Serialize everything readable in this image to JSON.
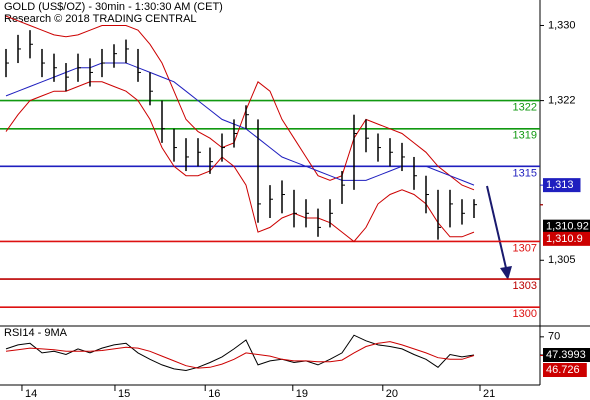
{
  "chart_data": [
    {
      "type": "ohlc",
      "title": "GOLD (US$/OZ) - 30min - 1:30:30 AM (CET)",
      "subtitle": "Research © 2018 TRADING CENTRAL",
      "xlim": [
        -0.5,
        44.5
      ],
      "ylim": [
        1298,
        1332.5
      ],
      "yticks": [
        {
          "value": 1330,
          "label": "1,330"
        },
        {
          "value": 1322,
          "label": "1,322"
        },
        {
          "value": 1305,
          "label": "1,305"
        }
      ],
      "bar_color": "#000",
      "high": [
        1327.5,
        1329,
        1329.5,
        1327.5,
        1327,
        1326,
        1327,
        1326.5,
        1327.5,
        1328,
        1328.5,
        1327.5,
        1325,
        1322,
        1319,
        1318,
        1318,
        1317,
        1318.5,
        1320,
        1321.5,
        1320,
        1313,
        1313.5,
        1312.5,
        1311.5,
        1310.5,
        1311.5,
        1314.5,
        1320.5,
        1320,
        1318.5,
        1318,
        1317.5,
        1316,
        1314,
        1312.5,
        1312.5,
        1311.5,
        1311.5
      ],
      "low": [
        1324.5,
        1326,
        1326.5,
        1324.5,
        1324,
        1323,
        1324,
        1323.5,
        1324.5,
        1325.5,
        1326,
        1324,
        1321.5,
        1317.5,
        1315.5,
        1314.5,
        1315,
        1314.2,
        1315.5,
        1317,
        1319,
        1309,
        1309.5,
        1310,
        1308.5,
        1308.5,
        1307.5,
        1308.5,
        1311,
        1312.5,
        1316.5,
        1315.5,
        1315,
        1314.5,
        1312.5,
        1310,
        1307.2,
        1308.5,
        1308.8,
        1309.5
      ],
      "close": [
        1326,
        1327.5,
        1328,
        1326,
        1325.5,
        1324.5,
        1325.5,
        1325,
        1326,
        1327,
        1327.5,
        1325,
        1323,
        1319,
        1317,
        1316,
        1316.5,
        1315.5,
        1317,
        1318.5,
        1320.5,
        1311,
        1311.5,
        1312,
        1310,
        1310,
        1308.5,
        1310,
        1313,
        1318.5,
        1318,
        1317,
        1316.5,
        1316,
        1314,
        1312,
        1308.5,
        1311,
        1310,
        1310.92
      ],
      "band_color": "#cc0000",
      "upper": [
        1331,
        1330.5,
        1330,
        1329.5,
        1329,
        1328.8,
        1329,
        1329.5,
        1330,
        1330,
        1330,
        1329.5,
        1328,
        1326,
        1323,
        1320,
        1318.7,
        1318,
        1317,
        1317.5,
        1321,
        1324,
        1323,
        1320,
        1318,
        1316,
        1314,
        1313.5,
        1314,
        1318,
        1320,
        1319.5,
        1319,
        1318.5,
        1317.5,
        1316.5,
        1315,
        1314,
        1313,
        1312.5
      ],
      "lower": [
        1318.7,
        1320.5,
        1322,
        1322.5,
        1323,
        1323,
        1323.5,
        1324,
        1324,
        1323.5,
        1323,
        1322,
        1320,
        1317,
        1315,
        1314,
        1314,
        1314.5,
        1316,
        1315,
        1313,
        1308,
        1308.5,
        1309.5,
        1310,
        1309.5,
        1309.5,
        1309,
        1308,
        1307,
        1308.5,
        1311,
        1312,
        1312.5,
        1312,
        1311,
        1309,
        1307.5,
        1307.5,
        1308
      ],
      "ma_color": "#1f1fbf",
      "ma": [
        1322.5,
        1323,
        1323.5,
        1324,
        1324.5,
        1325,
        1325.5,
        1325.5,
        1326,
        1326,
        1326,
        1325.5,
        1325,
        1324.5,
        1324,
        1323,
        1322,
        1321,
        1320,
        1319.5,
        1319,
        1318,
        1317,
        1316,
        1315.5,
        1315,
        1314.5,
        1314,
        1313.5,
        1313.5,
        1313.5,
        1314,
        1314.5,
        1315,
        1315,
        1315,
        1314.5,
        1314,
        1313.5,
        1313
      ],
      "levels": [
        {
          "value": 1322,
          "color": "#119911"
        },
        {
          "value": 1319,
          "color": "#119911"
        },
        {
          "value": 1315,
          "color": "#1f1fbf"
        },
        {
          "value": 1307,
          "color": "#dd1111"
        },
        {
          "value": 1303,
          "color": "#bb0000"
        },
        {
          "value": 1300,
          "color": "#dd1111"
        }
      ],
      "price_tags": [
        {
          "value": 1313,
          "label": "1,313",
          "color": "#1f1fbf"
        },
        {
          "value": 1310.92,
          "label": "1,310.92",
          "color": "#000000"
        },
        {
          "value": 1310.9,
          "label": "1,310.9",
          "color": "#cc0000"
        }
      ]
    },
    {
      "type": "line",
      "title": "RSI14 - 9MA",
      "xlim": [
        -0.5,
        44.5
      ],
      "ylim": [
        10,
        81
      ],
      "yticks": [
        70
      ],
      "xticks": [
        {
          "value": 1.33,
          "label": "14"
        },
        {
          "value": 9.08,
          "label": "15"
        },
        {
          "value": 16.6,
          "label": "16"
        },
        {
          "value": 23.9,
          "label": "19"
        },
        {
          "value": 31.4,
          "label": "20"
        },
        {
          "value": 39.5,
          "label": "21"
        }
      ],
      "series": [
        {
          "color": "#000000",
          "values": [
            55,
            60,
            62,
            50,
            52,
            48,
            55,
            50,
            56,
            60,
            62,
            50,
            42,
            35,
            30,
            28,
            32,
            38,
            45,
            55,
            66,
            35,
            40,
            42,
            38,
            40,
            35,
            42,
            50,
            72,
            65,
            60,
            58,
            55,
            48,
            42,
            32,
            48,
            45,
            47.3993
          ],
          "label": "47.3993"
        },
        {
          "color": "#cc0000",
          "values": [
            52,
            54,
            56,
            55,
            54,
            52,
            52,
            52,
            53,
            55,
            57,
            56,
            52,
            46,
            40,
            34,
            31,
            32,
            36,
            42,
            50,
            48,
            46,
            42,
            40,
            40,
            39,
            39,
            41,
            50,
            58,
            62,
            64,
            60,
            55,
            50,
            44,
            42,
            42,
            46.726
          ],
          "label": "46.726"
        }
      ]
    }
  ]
}
